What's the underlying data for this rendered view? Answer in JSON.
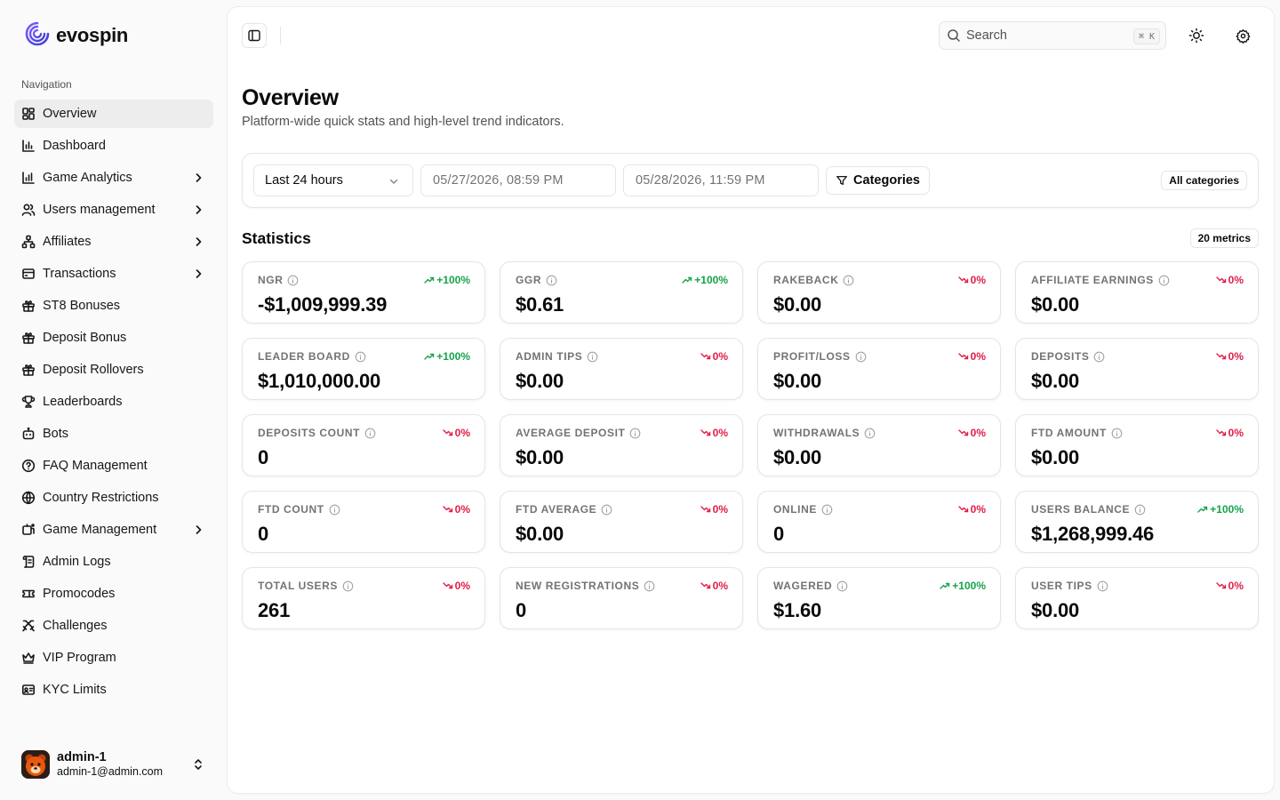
{
  "brand": {
    "name": "evospin",
    "accent": "#5b4bd8"
  },
  "sidebar": {
    "heading": "Navigation",
    "items": [
      {
        "label": "Overview",
        "icon": "layout-dashboard-icon",
        "active": true,
        "chevron": false
      },
      {
        "label": "Dashboard",
        "icon": "bar-chart-icon",
        "chevron": false
      },
      {
        "label": "Game Analytics",
        "icon": "bar-chart-2-icon",
        "chevron": true
      },
      {
        "label": "Users management",
        "icon": "users-icon",
        "chevron": true
      },
      {
        "label": "Affiliates",
        "icon": "network-icon",
        "chevron": true
      },
      {
        "label": "Transactions",
        "icon": "wallet-icon",
        "chevron": true
      },
      {
        "label": "ST8 Bonuses",
        "icon": "gift-icon",
        "chevron": false
      },
      {
        "label": "Deposit Bonus",
        "icon": "gift-icon",
        "chevron": false
      },
      {
        "label": "Deposit Rollovers",
        "icon": "gift-icon",
        "chevron": false
      },
      {
        "label": "Leaderboards",
        "icon": "trophy-icon",
        "chevron": false
      },
      {
        "label": "Bots",
        "icon": "bot-icon",
        "chevron": false
      },
      {
        "label": "FAQ Management",
        "icon": "help-circle-icon",
        "chevron": false
      },
      {
        "label": "Country Restrictions",
        "icon": "globe-icon",
        "chevron": false
      },
      {
        "label": "Game Management",
        "icon": "gamepad-icon",
        "chevron": true
      },
      {
        "label": "Admin Logs",
        "icon": "scroll-icon",
        "chevron": false
      },
      {
        "label": "Promocodes",
        "icon": "ticket-icon",
        "chevron": false
      },
      {
        "label": "Challenges",
        "icon": "swords-icon",
        "chevron": false
      },
      {
        "label": "VIP Program",
        "icon": "crown-icon",
        "chevron": false
      },
      {
        "label": "KYC Limits",
        "icon": "id-card-icon",
        "chevron": false
      }
    ]
  },
  "user": {
    "name": "admin-1",
    "email": "admin-1@admin.com"
  },
  "header": {
    "search_placeholder": "Search",
    "shortcut": "⌘ K"
  },
  "page": {
    "title": "Overview",
    "subtitle": "Platform-wide quick stats and high-level trend indicators."
  },
  "filters": {
    "range": "Last 24 hours",
    "from": "05/27/2026, 08:59 PM",
    "to": "05/28/2026, 11:59 PM",
    "categories_label": "Categories",
    "all_categories": "All categories"
  },
  "statistics": {
    "title": "Statistics",
    "count_label": "20 metrics",
    "colors": {
      "up": "#16a34a",
      "down": "#e11d48"
    },
    "metrics": [
      {
        "label": "NGR",
        "value": "-$1,009,999.39",
        "trend": "+100%",
        "dir": "up"
      },
      {
        "label": "GGR",
        "value": "$0.61",
        "trend": "+100%",
        "dir": "up"
      },
      {
        "label": "RAKEBACK",
        "value": "$0.00",
        "trend": "0%",
        "dir": "down"
      },
      {
        "label": "AFFILIATE EARNINGS",
        "value": "$0.00",
        "trend": "0%",
        "dir": "down"
      },
      {
        "label": "LEADER BOARD",
        "value": "$1,010,000.00",
        "trend": "+100%",
        "dir": "up"
      },
      {
        "label": "ADMIN TIPS",
        "value": "$0.00",
        "trend": "0%",
        "dir": "down"
      },
      {
        "label": "PROFIT/LOSS",
        "value": "$0.00",
        "trend": "0%",
        "dir": "down"
      },
      {
        "label": "DEPOSITS",
        "value": "$0.00",
        "trend": "0%",
        "dir": "down"
      },
      {
        "label": "DEPOSITS COUNT",
        "value": "0",
        "trend": "0%",
        "dir": "down"
      },
      {
        "label": "AVERAGE DEPOSIT",
        "value": "$0.00",
        "trend": "0%",
        "dir": "down"
      },
      {
        "label": "WITHDRAWALS",
        "value": "$0.00",
        "trend": "0%",
        "dir": "down"
      },
      {
        "label": "FTD AMOUNT",
        "value": "$0.00",
        "trend": "0%",
        "dir": "down"
      },
      {
        "label": "FTD COUNT",
        "value": "0",
        "trend": "0%",
        "dir": "down"
      },
      {
        "label": "FTD AVERAGE",
        "value": "$0.00",
        "trend": "0%",
        "dir": "down"
      },
      {
        "label": "ONLINE",
        "value": "0",
        "trend": "0%",
        "dir": "down"
      },
      {
        "label": "USERS BALANCE",
        "value": "$1,268,999.46",
        "trend": "+100%",
        "dir": "up"
      },
      {
        "label": "TOTAL USERS",
        "value": "261",
        "trend": "0%",
        "dir": "down"
      },
      {
        "label": "NEW REGISTRATIONS",
        "value": "0",
        "trend": "0%",
        "dir": "down"
      },
      {
        "label": "WAGERED",
        "value": "$1.60",
        "trend": "+100%",
        "dir": "up"
      },
      {
        "label": "USER TIPS",
        "value": "$0.00",
        "trend": "0%",
        "dir": "down"
      }
    ]
  }
}
